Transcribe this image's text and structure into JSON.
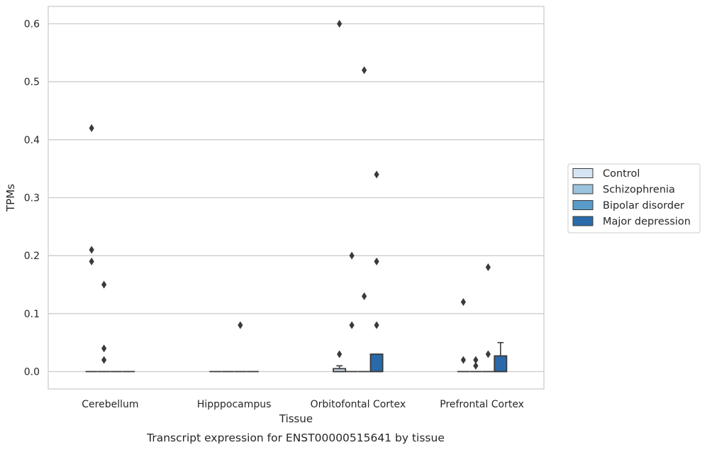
{
  "chart_data": {
    "type": "box",
    "caption": "Transcript expression for ENST00000515641 by tissue",
    "xlabel": "Tissue",
    "ylabel": "TPMs",
    "ylim": [
      -0.03,
      0.63
    ],
    "yticks": [
      0.0,
      0.1,
      0.2,
      0.3,
      0.4,
      0.5,
      0.6
    ],
    "ytick_labels": [
      "0.0",
      "0.1",
      "0.2",
      "0.3",
      "0.4",
      "0.5",
      "0.6"
    ],
    "grid": "horizontal",
    "legend_position": "right",
    "categories": [
      "Cerebellum",
      "Hipppocampus",
      "Orbitofontal Cortex",
      "Prefrontal Cortex"
    ],
    "series": [
      {
        "name": "Control",
        "color": "#d5e5f3",
        "boxes": [
          {
            "q1": 0,
            "median": 0,
            "q3": 0,
            "whisker_low": 0,
            "whisker_high": 0,
            "outliers": [
              0.42,
              0.21,
              0.19
            ]
          },
          {
            "q1": 0,
            "median": 0,
            "q3": 0,
            "whisker_low": 0,
            "whisker_high": 0,
            "outliers": []
          },
          {
            "q1": 0,
            "median": 0,
            "q3": 0.005,
            "whisker_low": 0,
            "whisker_high": 0.01,
            "outliers": [
              0.6,
              0.03
            ]
          },
          {
            "q1": 0,
            "median": 0,
            "q3": 0,
            "whisker_low": 0,
            "whisker_high": 0,
            "outliers": [
              0.12,
              0.02
            ]
          }
        ]
      },
      {
        "name": "Schizophrenia",
        "color": "#9ac3de",
        "boxes": [
          {
            "q1": 0,
            "median": 0,
            "q3": 0,
            "whisker_low": 0,
            "whisker_high": 0,
            "outliers": [
              0.15,
              0.04,
              0.02
            ]
          },
          {
            "q1": 0,
            "median": 0,
            "q3": 0,
            "whisker_low": 0,
            "whisker_high": 0,
            "outliers": []
          },
          {
            "q1": 0,
            "median": 0,
            "q3": 0,
            "whisker_low": 0,
            "whisker_high": 0,
            "outliers": [
              0.2,
              0.08
            ]
          },
          {
            "q1": 0,
            "median": 0,
            "q3": 0,
            "whisker_low": 0,
            "whisker_high": 0,
            "outliers": [
              0.02,
              0.01
            ]
          }
        ]
      },
      {
        "name": "Bipolar disorder",
        "color": "#5a9ac8",
        "boxes": [
          {
            "q1": 0,
            "median": 0,
            "q3": 0,
            "whisker_low": 0,
            "whisker_high": 0,
            "outliers": []
          },
          {
            "q1": 0,
            "median": 0,
            "q3": 0,
            "whisker_low": 0,
            "whisker_high": 0,
            "outliers": [
              0.08
            ]
          },
          {
            "q1": 0,
            "median": 0,
            "q3": 0,
            "whisker_low": 0,
            "whisker_high": 0,
            "outliers": [
              0.52,
              0.13
            ]
          },
          {
            "q1": 0,
            "median": 0,
            "q3": 0,
            "whisker_low": 0,
            "whisker_high": 0,
            "outliers": [
              0.18,
              0.03
            ]
          }
        ]
      },
      {
        "name": "Major depression",
        "color": "#2a6aab",
        "boxes": [
          {
            "q1": 0,
            "median": 0,
            "q3": 0,
            "whisker_low": 0,
            "whisker_high": 0,
            "outliers": []
          },
          {
            "q1": 0,
            "median": 0,
            "q3": 0,
            "whisker_low": 0,
            "whisker_high": 0,
            "outliers": []
          },
          {
            "q1": 0,
            "median": 0,
            "q3": 0.03,
            "whisker_low": 0,
            "whisker_high": 0.03,
            "outliers": [
              0.34,
              0.19,
              0.08
            ]
          },
          {
            "q1": 0,
            "median": 0,
            "q3": 0.027,
            "whisker_low": 0,
            "whisker_high": 0.05,
            "outliers": []
          }
        ]
      }
    ]
  }
}
